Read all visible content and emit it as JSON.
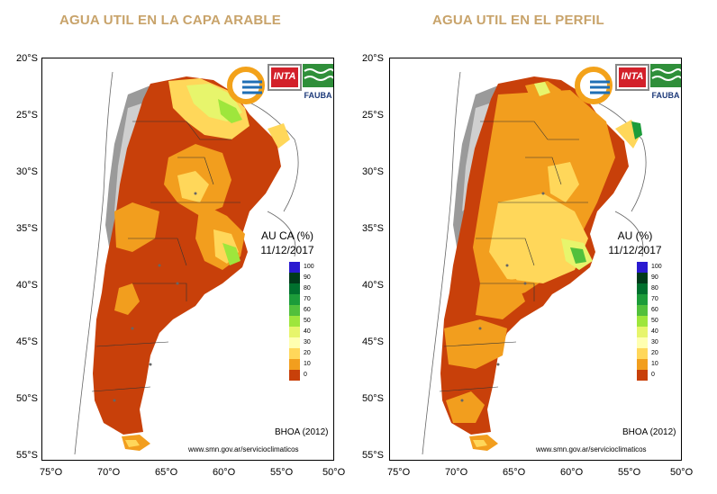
{
  "left": {
    "title": "AGUA UTIL EN LA CAPA ARABLE",
    "legend_title_1": "AU CA (%)",
    "legend_title_2": "11/12/2017"
  },
  "right": {
    "title": "AGUA UTIL EN EL PERFIL",
    "legend_title_1": "AU (%)",
    "legend_title_2": "11/12/2017"
  },
  "lat_labels": [
    "20°S",
    "25°S",
    "30°S",
    "35°S",
    "40°S",
    "45°S",
    "50°S",
    "55°S"
  ],
  "lon_labels": [
    "75°O",
    "70°O",
    "65°O",
    "60°O",
    "55°O",
    "50°O"
  ],
  "legend": {
    "values": [
      "100",
      "90",
      "80",
      "70",
      "60",
      "50",
      "40",
      "30",
      "20",
      "10",
      "0"
    ],
    "colors": [
      "#2a1ad0",
      "#003a1a",
      "#00702e",
      "#1c9c3a",
      "#52c03c",
      "#9ee63c",
      "#e7f56c",
      "#ffffb0",
      "#ffd75a",
      "#f29e1e",
      "#c8400a"
    ]
  },
  "logos": {
    "inta": "INTA",
    "fauba": "FAUBA"
  },
  "source": "BHOA (2012)",
  "url": "www.smn.gov.ar/servicioclimaticos",
  "colors": {
    "title": "#c8a36a",
    "dry": "#c8400a",
    "orange": "#f29e1e",
    "yellow": "#ffd75a",
    "wet": "#9ee63c"
  }
}
